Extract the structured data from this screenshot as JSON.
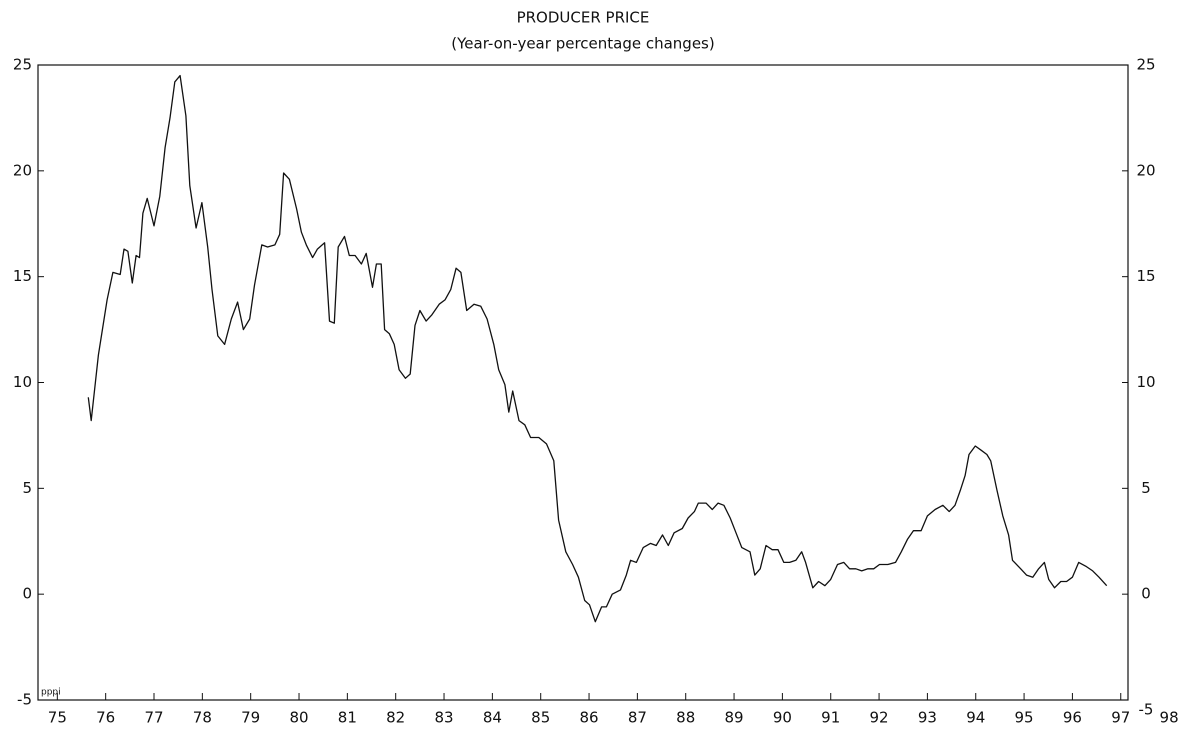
{
  "chart_data": {
    "type": "line",
    "title": "PRODUCER PRICE",
    "subtitle": "(Year-on-year percentage changes)",
    "annotation": "pppi",
    "color": "#111111",
    "x": [
      75.64,
      75.7,
      75.85,
      76.03,
      76.15,
      76.3,
      76.38,
      76.46,
      76.55,
      76.63,
      76.7,
      76.77,
      76.86,
      77.0,
      77.12,
      77.23,
      77.33,
      77.43,
      77.54,
      77.66,
      77.74,
      77.87,
      77.99,
      78.11,
      78.2,
      78.32,
      78.46,
      78.6,
      78.73,
      78.85,
      78.98,
      79.08,
      79.23,
      79.35,
      79.5,
      79.6,
      79.68,
      79.8,
      79.95,
      80.05,
      80.15,
      80.28,
      80.38,
      80.53,
      80.63,
      80.73,
      80.81,
      80.94,
      81.04,
      81.16,
      81.29,
      81.39,
      81.52,
      81.6,
      81.7,
      81.77,
      81.87,
      81.97,
      82.07,
      82.2,
      82.3,
      82.4,
      82.5,
      82.63,
      82.75,
      82.9,
      83.02,
      83.14,
      83.25,
      83.35,
      83.47,
      83.62,
      83.76,
      83.89,
      84.03,
      84.13,
      84.26,
      84.34,
      84.42,
      84.55,
      84.67,
      84.79,
      84.96,
      85.12,
      85.27,
      85.37,
      85.52,
      85.66,
      85.78,
      85.91,
      86.01,
      86.13,
      86.26,
      86.36,
      86.48,
      86.65,
      86.77,
      86.86,
      86.98,
      87.12,
      87.27,
      87.39,
      87.52,
      87.64,
      87.76,
      87.93,
      88.05,
      88.18,
      88.26,
      88.42,
      88.55,
      88.67,
      88.79,
      88.92,
      89.04,
      89.16,
      89.33,
      89.43,
      89.54,
      89.66,
      89.79,
      89.91,
      90.03,
      90.15,
      90.28,
      90.4,
      90.48,
      90.63,
      90.75,
      90.88,
      91.0,
      91.14,
      91.27,
      91.39,
      91.52,
      91.64,
      91.77,
      91.89,
      92.01,
      92.18,
      92.34,
      92.46,
      92.59,
      92.71,
      92.87,
      93.0,
      93.16,
      93.32,
      93.45,
      93.57,
      93.68,
      93.78,
      93.86,
      93.99,
      94.11,
      94.23,
      94.31,
      94.44,
      94.56,
      94.68,
      94.76,
      94.93,
      95.05,
      95.18,
      95.3,
      95.42,
      95.51,
      95.63,
      95.76,
      95.88,
      96.0,
      96.13,
      96.29,
      96.42,
      96.55,
      96.71
    ],
    "values": [
      9.3,
      8.2,
      11.3,
      13.9,
      15.2,
      15.1,
      16.3,
      16.2,
      14.7,
      16.0,
      15.9,
      18.0,
      18.7,
      17.4,
      18.8,
      21.1,
      22.5,
      24.2,
      24.5,
      22.6,
      19.3,
      17.3,
      18.5,
      16.4,
      14.4,
      12.2,
      11.8,
      13.0,
      13.8,
      12.5,
      13.0,
      14.6,
      16.5,
      16.4,
      16.5,
      17.0,
      19.9,
      19.6,
      18.2,
      17.1,
      16.5,
      15.9,
      16.3,
      16.6,
      12.9,
      12.8,
      16.4,
      16.9,
      16.0,
      16.0,
      15.6,
      16.1,
      14.5,
      15.6,
      15.6,
      12.5,
      12.3,
      11.8,
      10.6,
      10.2,
      10.4,
      12.7,
      13.4,
      12.9,
      13.2,
      13.7,
      13.9,
      14.4,
      15.4,
      15.2,
      13.4,
      13.7,
      13.6,
      13.0,
      11.8,
      10.6,
      9.9,
      8.6,
      9.6,
      8.2,
      8.0,
      7.4,
      7.4,
      7.1,
      6.3,
      3.5,
      2.0,
      1.4,
      0.8,
      -0.3,
      -0.5,
      -1.3,
      -0.6,
      -0.6,
      0.0,
      0.2,
      0.9,
      1.6,
      1.5,
      2.2,
      2.4,
      2.3,
      2.8,
      2.3,
      2.9,
      3.1,
      3.6,
      3.9,
      4.3,
      4.3,
      4.0,
      4.3,
      4.2,
      3.6,
      2.9,
      2.2,
      2.0,
      0.9,
      1.2,
      2.3,
      2.1,
      2.1,
      1.5,
      1.5,
      1.6,
      2.0,
      1.5,
      0.3,
      0.6,
      0.4,
      0.7,
      1.4,
      1.5,
      1.2,
      1.2,
      1.1,
      1.2,
      1.2,
      1.4,
      1.4,
      1.5,
      2.0,
      2.6,
      3.0,
      3.0,
      3.7,
      4.0,
      4.2,
      3.9,
      4.2,
      4.9,
      5.6,
      6.6,
      7.0,
      6.8,
      6.6,
      6.3,
      4.9,
      3.7,
      2.8,
      1.6,
      1.2,
      0.9,
      0.8,
      1.2,
      1.5,
      0.7,
      0.3,
      0.6,
      0.6,
      0.8,
      1.5,
      1.3,
      1.1,
      0.8,
      0.4
    ],
    "xlim": [
      74.6,
      97.15
    ],
    "xticks": [
      {
        "value": 75,
        "label": "75"
      },
      {
        "value": 76,
        "label": "76"
      },
      {
        "value": 77,
        "label": "77"
      },
      {
        "value": 78,
        "label": "78"
      },
      {
        "value": 79,
        "label": "79"
      },
      {
        "value": 80,
        "label": "80"
      },
      {
        "value": 81,
        "label": "81"
      },
      {
        "value": 82,
        "label": "82"
      },
      {
        "value": 83,
        "label": "83"
      },
      {
        "value": 84,
        "label": "84"
      },
      {
        "value": 85,
        "label": "85"
      },
      {
        "value": 86,
        "label": "86"
      },
      {
        "value": 87,
        "label": "87"
      },
      {
        "value": 88,
        "label": "88"
      },
      {
        "value": 89,
        "label": "89"
      },
      {
        "value": 90,
        "label": "90"
      },
      {
        "value": 91,
        "label": "91"
      },
      {
        "value": 92,
        "label": "92"
      },
      {
        "value": 93,
        "label": "93"
      },
      {
        "value": 94,
        "label": "94"
      },
      {
        "value": 95,
        "label": "95"
      },
      {
        "value": 96,
        "label": "96"
      },
      {
        "value": 97,
        "label": "97"
      },
      {
        "value": 98,
        "label": "98"
      }
    ],
    "ylim": [
      -5,
      25
    ],
    "yticks": [
      -5,
      0,
      5,
      10,
      15,
      20,
      25
    ],
    "y2lim": [
      -5,
      25
    ],
    "y2ticks": [
      -5,
      0,
      5,
      10,
      15,
      20,
      25
    ],
    "grid": false
  }
}
